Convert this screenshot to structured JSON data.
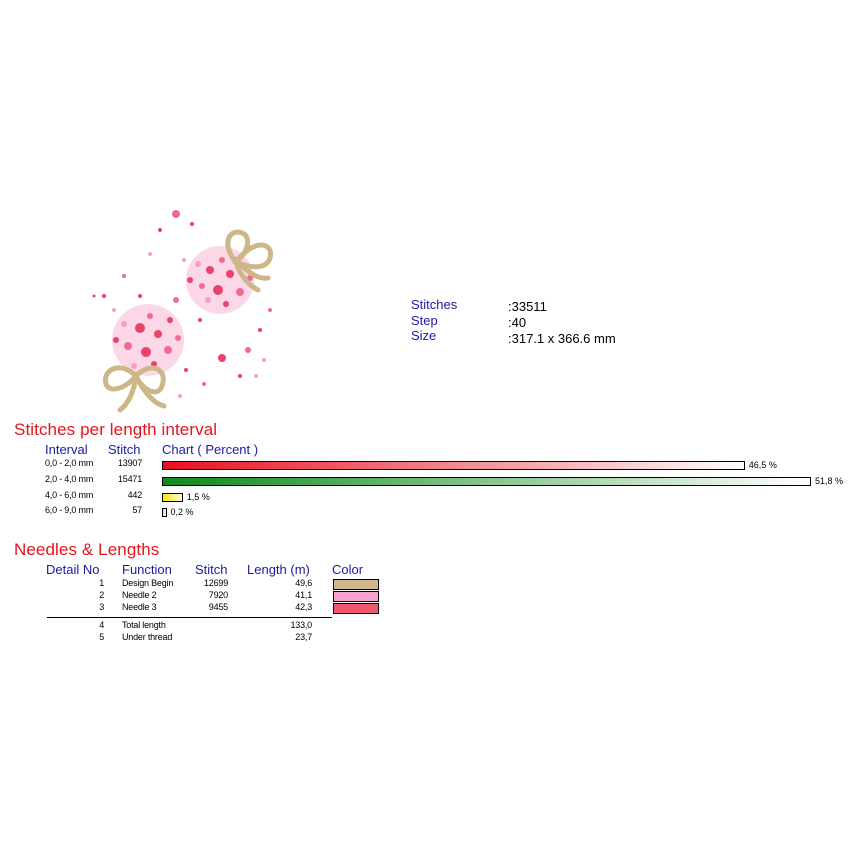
{
  "summary": {
    "stitches_label": "Stitches",
    "stitches_value": ":33511",
    "step_label": "Step",
    "step_value": ":40",
    "size_label": "Size",
    "size_value": ":317.1 x 366.6 mm"
  },
  "interval_section": {
    "title": "Stitches per length interval",
    "headers": {
      "interval": "Interval",
      "stitch": "Stitch",
      "chart": "Chart ( Percent )"
    },
    "rows": [
      {
        "interval": "0,0 - 2,0 mm",
        "stitch": "13907",
        "percent_label": "46,5 %",
        "percent": 46.5,
        "color_start": "#e8101e",
        "color_end": "#ffffff"
      },
      {
        "interval": "2,0 - 4,0 mm",
        "stitch": "15471",
        "percent_label": "51,8 %",
        "percent": 51.8,
        "color_start": "#0f8a1a",
        "color_end": "#ffffff"
      },
      {
        "interval": "4,0 - 6,0 mm",
        "stitch": "442",
        "percent_label": "1,5 %",
        "percent": 1.5,
        "color_start": "#f4e81c",
        "color_end": "#fffbd0"
      },
      {
        "interval": "6,0 - 9,0 mm",
        "stitch": "57",
        "percent_label": "0,2 %",
        "percent": 0.2,
        "color_start": "#cccccc",
        "color_end": "#ffffff"
      }
    ]
  },
  "needles_section": {
    "title": "Needles & Lengths",
    "headers": {
      "detail": "Detail No",
      "function": "Function",
      "stitch": "Stitch",
      "length": "Length (m)",
      "color": "Color"
    },
    "rows": [
      {
        "no": "1",
        "function": "Design Begin",
        "stitch": "12699",
        "length": "49,6",
        "color": "#d2b98d"
      },
      {
        "no": "2",
        "function": "Needle 2",
        "stitch": "7920",
        "length": "41,1",
        "color": "#f7a3cf"
      },
      {
        "no": "3",
        "function": "Needle 3",
        "stitch": "9455",
        "length": "42,3",
        "color": "#f0566c"
      }
    ],
    "totals": [
      {
        "no": "4",
        "function": "Total length",
        "length": "133,0"
      },
      {
        "no": "5",
        "function": "Under thread",
        "length": "23,7"
      }
    ]
  },
  "colors": {
    "label_blue": "#1a1aa6",
    "title_red": "#e4141b"
  }
}
